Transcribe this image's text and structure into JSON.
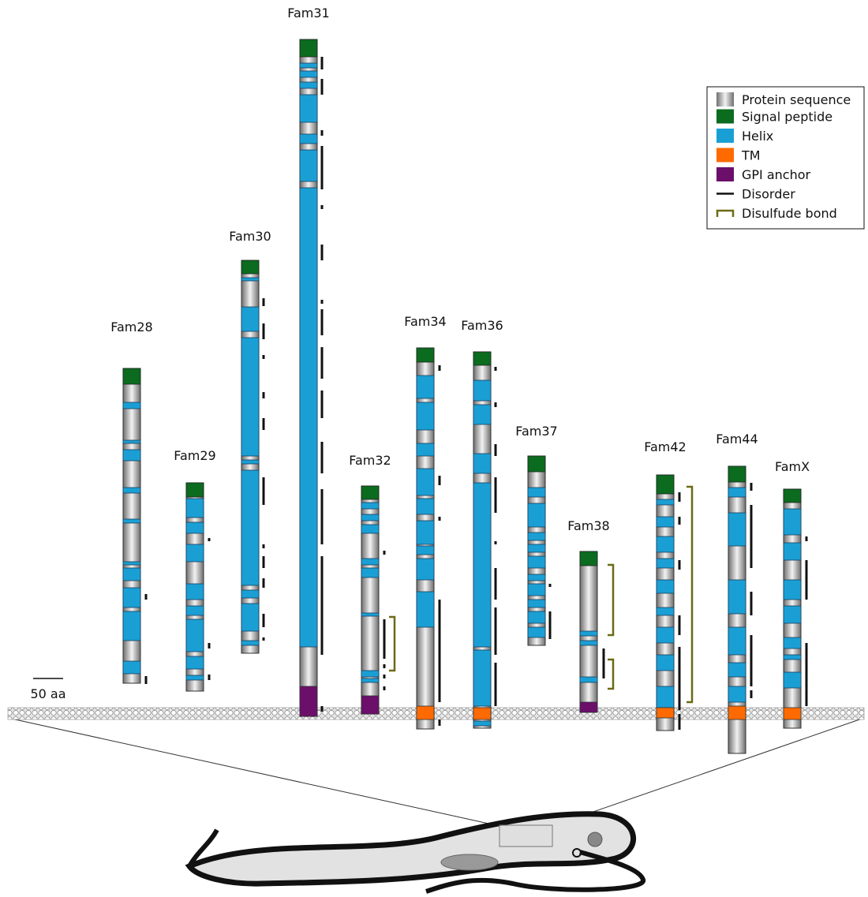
{
  "families": [
    {
      "name": "Fam28"
    },
    {
      "name": "Fam29"
    },
    {
      "name": "Fam30"
    },
    {
      "name": "Fam31"
    },
    {
      "name": "Fam32"
    },
    {
      "name": "Fam34"
    },
    {
      "name": "Fam36"
    },
    {
      "name": "Fam37"
    },
    {
      "name": "Fam38"
    },
    {
      "name": "Fam42"
    },
    {
      "name": "Fam44"
    },
    {
      "name": "FamX"
    }
  ],
  "legend": [
    "Protein sequence",
    "Signal peptide",
    "Helix",
    "TM",
    "GPI anchor",
    "Disorder",
    "Disulfude bond"
  ],
  "scale_bar": "50 aa"
}
